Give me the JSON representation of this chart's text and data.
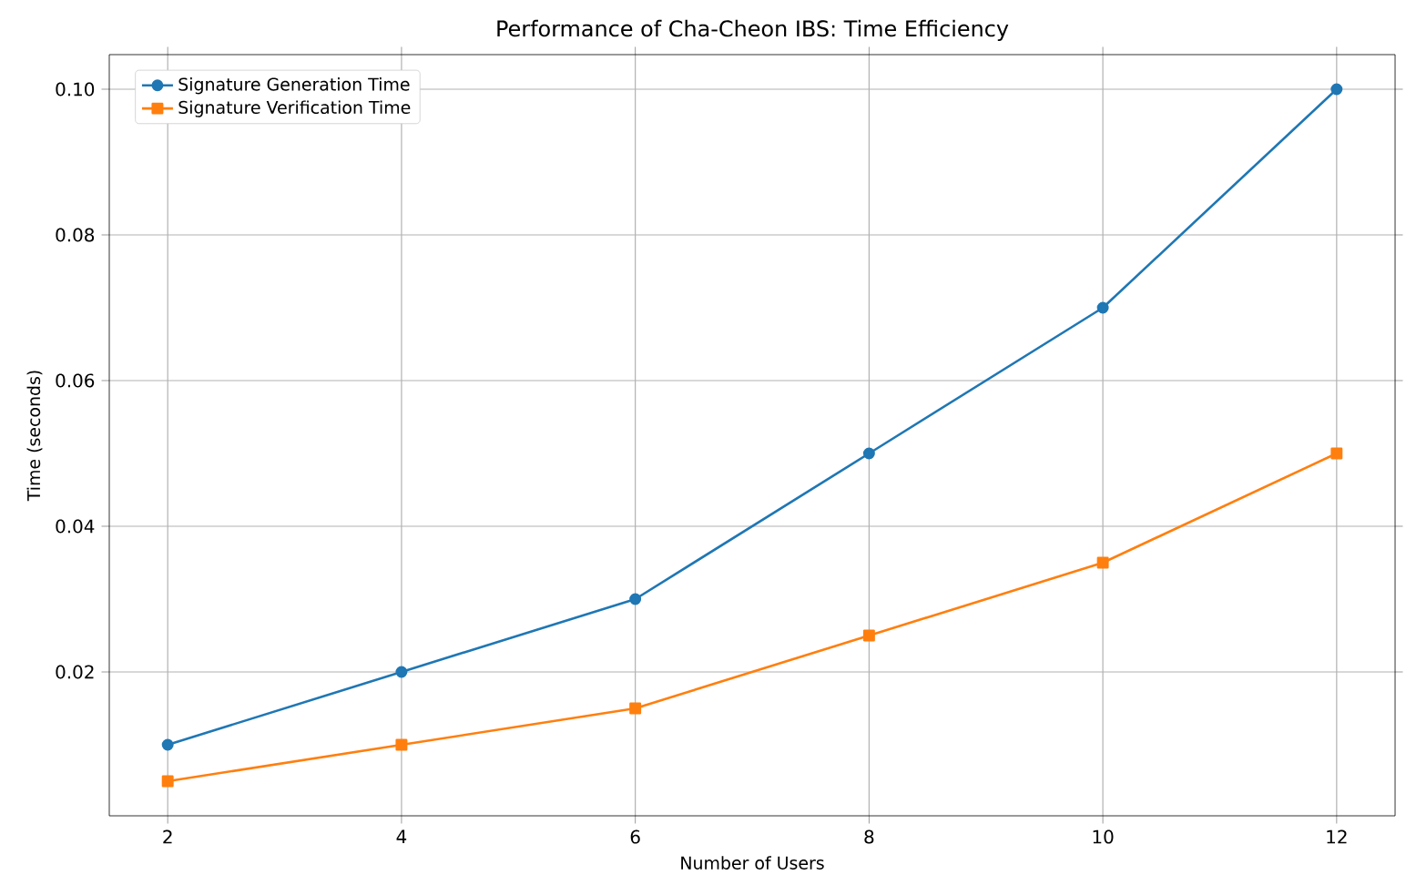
{
  "chart_data": {
    "type": "line",
    "title": "Performance of Cha-Cheon IBS: Time Efficiency",
    "xlabel": "Number of Users",
    "ylabel": "Time (seconds)",
    "x": [
      2,
      4,
      6,
      8,
      10,
      12
    ],
    "series": [
      {
        "name": "Signature Generation Time",
        "color": "#1f77b4",
        "marker": "circle",
        "values": [
          0.01,
          0.02,
          0.03,
          0.05,
          0.07,
          0.1
        ]
      },
      {
        "name": "Signature Verification Time",
        "color": "#ff7f0e",
        "marker": "square",
        "values": [
          0.005,
          0.01,
          0.015,
          0.025,
          0.035,
          0.05
        ]
      }
    ],
    "xlim": [
      1.5,
      12.5
    ],
    "xticks": [
      2,
      4,
      6,
      8,
      10,
      12
    ],
    "ylim": [
      0.00025,
      0.10475
    ],
    "yticks": [
      0.02,
      0.04,
      0.06,
      {
        "value": 0.08,
        "label": "0.08"
      },
      {
        "value": 0.1,
        "label": "0.10"
      }
    ],
    "grid": true,
    "legend": "top left",
    "line_style": "solid"
  }
}
